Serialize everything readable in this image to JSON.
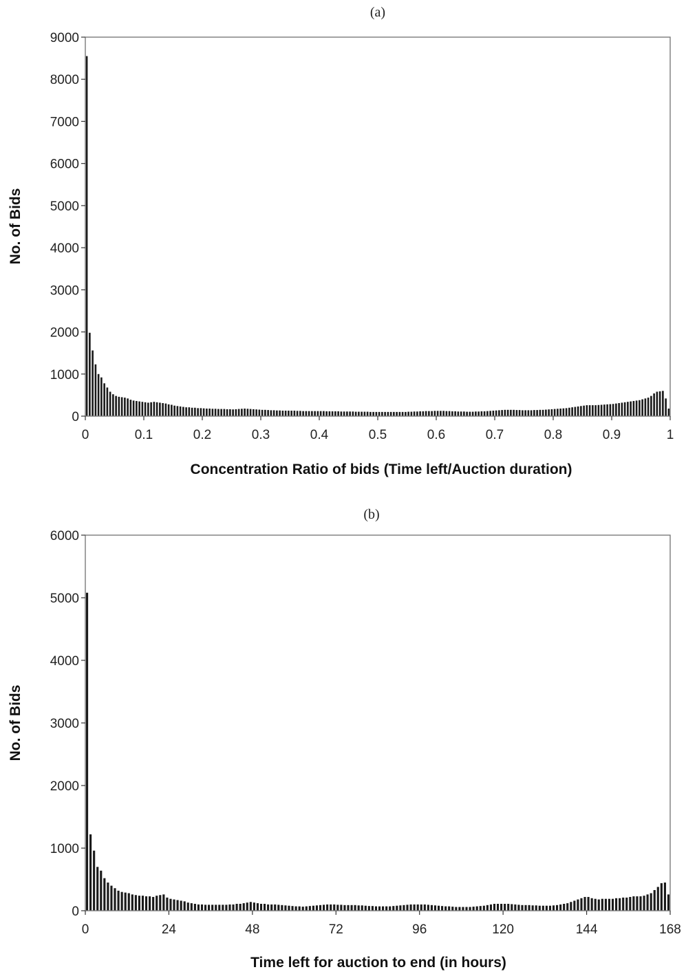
{
  "chart_data": [
    {
      "type": "bar",
      "panel_label": "(a)",
      "xlabel": "Concentration Ratio of bids (Time left/Auction duration)",
      "ylabel": "No. of Bids",
      "xlim": [
        0,
        1
      ],
      "ylim": [
        0,
        9000
      ],
      "xticks": [
        0,
        0.1,
        0.2,
        0.3,
        0.4,
        0.5,
        0.6,
        0.7,
        0.8,
        0.9,
        1
      ],
      "xtick_labels": [
        "0",
        "0.1",
        "0.2",
        "0.3",
        "0.4",
        "0.5",
        "0.6",
        "0.7",
        "0.8",
        "0.9",
        "1"
      ],
      "yticks": [
        0,
        1000,
        2000,
        3000,
        4000,
        5000,
        6000,
        7000,
        8000,
        9000
      ],
      "ytick_labels": [
        "0",
        "1000",
        "2000",
        "3000",
        "4000",
        "5000",
        "6000",
        "7000",
        "8000",
        "9000"
      ],
      "grid": false,
      "bin_width": 0.005,
      "x": [
        0.005,
        0.01,
        0.015,
        0.02,
        0.025,
        0.03,
        0.035,
        0.04,
        0.045,
        0.05,
        0.055,
        0.06,
        0.065,
        0.07,
        0.075,
        0.08,
        0.085,
        0.09,
        0.095,
        0.1,
        0.105,
        0.11,
        0.115,
        0.12,
        0.125,
        0.13,
        0.135,
        0.14,
        0.145,
        0.15,
        0.155,
        0.16,
        0.165,
        0.17,
        0.175,
        0.18,
        0.185,
        0.19,
        0.195,
        0.2,
        0.205,
        0.21,
        0.215,
        0.22,
        0.225,
        0.23,
        0.235,
        0.24,
        0.245,
        0.25,
        0.255,
        0.26,
        0.265,
        0.27,
        0.275,
        0.28,
        0.285,
        0.29,
        0.295,
        0.3,
        0.305,
        0.31,
        0.315,
        0.32,
        0.325,
        0.33,
        0.335,
        0.34,
        0.345,
        0.35,
        0.355,
        0.36,
        0.365,
        0.37,
        0.375,
        0.38,
        0.385,
        0.39,
        0.395,
        0.4,
        0.405,
        0.41,
        0.415,
        0.42,
        0.425,
        0.43,
        0.435,
        0.44,
        0.445,
        0.45,
        0.455,
        0.46,
        0.465,
        0.47,
        0.475,
        0.48,
        0.485,
        0.49,
        0.495,
        0.5,
        0.505,
        0.51,
        0.515,
        0.52,
        0.525,
        0.53,
        0.535,
        0.54,
        0.545,
        0.55,
        0.555,
        0.56,
        0.565,
        0.57,
        0.575,
        0.58,
        0.585,
        0.59,
        0.595,
        0.6,
        0.605,
        0.61,
        0.615,
        0.62,
        0.625,
        0.63,
        0.635,
        0.64,
        0.645,
        0.65,
        0.655,
        0.66,
        0.665,
        0.67,
        0.675,
        0.68,
        0.685,
        0.69,
        0.695,
        0.7,
        0.705,
        0.71,
        0.715,
        0.72,
        0.725,
        0.73,
        0.735,
        0.74,
        0.745,
        0.75,
        0.755,
        0.76,
        0.765,
        0.77,
        0.775,
        0.78,
        0.785,
        0.79,
        0.795,
        0.8,
        0.805,
        0.81,
        0.815,
        0.82,
        0.825,
        0.83,
        0.835,
        0.84,
        0.845,
        0.85,
        0.855,
        0.86,
        0.865,
        0.87,
        0.875,
        0.88,
        0.885,
        0.89,
        0.895,
        0.9,
        0.905,
        0.91,
        0.915,
        0.92,
        0.925,
        0.93,
        0.935,
        0.94,
        0.945,
        0.95,
        0.955,
        0.96,
        0.965,
        0.97,
        0.975,
        0.98,
        0.985,
        0.99,
        0.995,
        1.0
      ],
      "values": [
        8550,
        1980,
        1560,
        1230,
        1000,
        920,
        780,
        680,
        580,
        520,
        480,
        460,
        450,
        440,
        420,
        390,
        370,
        360,
        350,
        340,
        330,
        320,
        330,
        340,
        330,
        320,
        310,
        300,
        280,
        270,
        250,
        240,
        230,
        220,
        210,
        210,
        200,
        200,
        190,
        190,
        185,
        180,
        180,
        175,
        175,
        170,
        170,
        170,
        165,
        165,
        160,
        165,
        170,
        175,
        180,
        175,
        170,
        165,
        160,
        155,
        150,
        150,
        145,
        140,
        140,
        135,
        135,
        130,
        130,
        130,
        130,
        130,
        125,
        125,
        120,
        120,
        120,
        120,
        120,
        120,
        120,
        120,
        115,
        115,
        115,
        115,
        115,
        110,
        110,
        110,
        110,
        110,
        105,
        105,
        105,
        105,
        105,
        100,
        100,
        100,
        100,
        100,
        100,
        100,
        100,
        100,
        100,
        100,
        100,
        100,
        105,
        105,
        110,
        110,
        115,
        115,
        120,
        120,
        120,
        125,
        125,
        125,
        125,
        120,
        120,
        115,
        115,
        110,
        110,
        110,
        105,
        105,
        105,
        110,
        110,
        115,
        115,
        120,
        125,
        130,
        135,
        140,
        145,
        150,
        150,
        150,
        150,
        145,
        145,
        140,
        140,
        140,
        140,
        145,
        145,
        150,
        150,
        155,
        160,
        165,
        170,
        175,
        180,
        185,
        190,
        200,
        210,
        220,
        230,
        240,
        250,
        260,
        260,
        260,
        260,
        265,
        270,
        275,
        280,
        285,
        290,
        300,
        310,
        320,
        330,
        340,
        350,
        360,
        370,
        380,
        400,
        420,
        440,
        480,
        540,
        580,
        590,
        600,
        420,
        180
      ]
    },
    {
      "type": "bar",
      "panel_label": "(b)",
      "xlabel": "Time left for auction to end (in hours)",
      "ylabel": "No. of Bids",
      "xlim": [
        0,
        168
      ],
      "ylim": [
        0,
        6000
      ],
      "xticks": [
        0,
        24,
        48,
        72,
        96,
        120,
        144,
        168
      ],
      "xtick_labels": [
        "0",
        "24",
        "48",
        "72",
        "96",
        "120",
        "144",
        "168"
      ],
      "yticks": [
        0,
        1000,
        2000,
        3000,
        4000,
        5000,
        6000
      ],
      "ytick_labels": [
        "0",
        "1000",
        "2000",
        "3000",
        "4000",
        "5000",
        "6000"
      ],
      "grid": false,
      "bin_width": 1,
      "x": [
        1,
        2,
        3,
        4,
        5,
        6,
        7,
        8,
        9,
        10,
        11,
        12,
        13,
        14,
        15,
        16,
        17,
        18,
        19,
        20,
        21,
        22,
        23,
        24,
        25,
        26,
        27,
        28,
        29,
        30,
        31,
        32,
        33,
        34,
        35,
        36,
        37,
        38,
        39,
        40,
        41,
        42,
        43,
        44,
        45,
        46,
        47,
        48,
        49,
        50,
        51,
        52,
        53,
        54,
        55,
        56,
        57,
        58,
        59,
        60,
        61,
        62,
        63,
        64,
        65,
        66,
        67,
        68,
        69,
        70,
        71,
        72,
        73,
        74,
        75,
        76,
        77,
        78,
        79,
        80,
        81,
        82,
        83,
        84,
        85,
        86,
        87,
        88,
        89,
        90,
        91,
        92,
        93,
        94,
        95,
        96,
        97,
        98,
        99,
        100,
        101,
        102,
        103,
        104,
        105,
        106,
        107,
        108,
        109,
        110,
        111,
        112,
        113,
        114,
        115,
        116,
        117,
        118,
        119,
        120,
        121,
        122,
        123,
        124,
        125,
        126,
        127,
        128,
        129,
        130,
        131,
        132,
        133,
        134,
        135,
        136,
        137,
        138,
        139,
        140,
        141,
        142,
        143,
        144,
        145,
        146,
        147,
        148,
        149,
        150,
        151,
        152,
        153,
        154,
        155,
        156,
        157,
        158,
        159,
        160,
        161,
        162,
        163,
        164,
        165,
        166,
        167,
        168
      ],
      "values": [
        5080,
        1220,
        960,
        700,
        640,
        520,
        450,
        400,
        360,
        320,
        300,
        290,
        280,
        260,
        250,
        240,
        240,
        230,
        230,
        220,
        240,
        250,
        260,
        210,
        190,
        180,
        170,
        160,
        150,
        130,
        120,
        110,
        100,
        100,
        95,
        95,
        95,
        95,
        95,
        95,
        95,
        100,
        100,
        110,
        110,
        120,
        130,
        140,
        130,
        120,
        110,
        110,
        100,
        100,
        100,
        95,
        90,
        85,
        80,
        75,
        70,
        70,
        65,
        70,
        75,
        80,
        85,
        90,
        95,
        100,
        100,
        100,
        95,
        95,
        90,
        90,
        90,
        90,
        85,
        85,
        80,
        75,
        75,
        70,
        70,
        70,
        70,
        70,
        75,
        80,
        85,
        90,
        95,
        100,
        100,
        100,
        100,
        100,
        95,
        90,
        85,
        80,
        75,
        70,
        70,
        65,
        60,
        60,
        60,
        60,
        60,
        65,
        70,
        75,
        80,
        90,
        100,
        110,
        110,
        110,
        110,
        110,
        105,
        100,
        95,
        90,
        90,
        90,
        85,
        85,
        80,
        80,
        80,
        80,
        85,
        90,
        100,
        110,
        120,
        140,
        160,
        180,
        200,
        220,
        220,
        200,
        190,
        180,
        190,
        190,
        190,
        190,
        200,
        200,
        210,
        210,
        220,
        230,
        230,
        230,
        240,
        260,
        280,
        330,
        380,
        440,
        450,
        260
      ]
    }
  ]
}
